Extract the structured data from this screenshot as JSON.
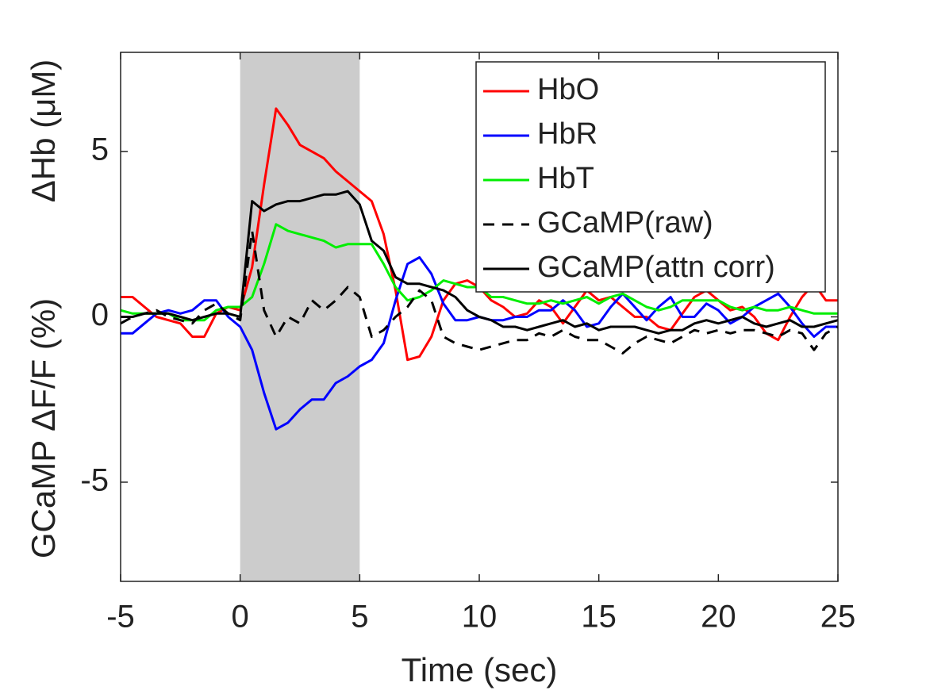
{
  "chart_data": {
    "type": "line",
    "xlabel": "Time (sec)",
    "ylabel": [
      "GCaMP ΔF/F (%)",
      "ΔHb (μM)"
    ],
    "x": [
      -5,
      -4.5,
      -4,
      -3.5,
      -3,
      -2.5,
      -2,
      -1.5,
      -1,
      -0.5,
      0,
      0.5,
      1,
      1.5,
      2,
      2.5,
      3,
      3.5,
      4,
      4.5,
      5,
      5.5,
      6,
      6.5,
      7,
      7.5,
      8,
      8.5,
      9,
      9.5,
      10,
      10.5,
      11,
      11.5,
      12,
      12.5,
      13,
      13.5,
      14,
      14.5,
      15,
      15.5,
      16,
      16.5,
      17,
      17.5,
      18,
      18.5,
      19,
      19.5,
      20,
      20.5,
      21,
      21.5,
      22,
      22.5,
      23,
      23.5,
      24,
      24.5,
      25
    ],
    "series": [
      {
        "name": "HbO",
        "color": "#ff0000",
        "dashed": false,
        "values": [
          0.6,
          0.6,
          0.3,
          0.0,
          -0.1,
          -0.2,
          -0.6,
          -0.6,
          0.1,
          0.3,
          0.2,
          1.5,
          4.0,
          6.3,
          5.8,
          5.2,
          5.0,
          4.8,
          4.4,
          4.1,
          3.8,
          3.5,
          2.5,
          0.8,
          -1.3,
          -1.2,
          -0.6,
          0.5,
          1.0,
          1.1,
          0.9,
          0.5,
          0.3,
          0.0,
          0.1,
          0.5,
          0.3,
          -0.2,
          0.3,
          0.8,
          0.5,
          0.6,
          0.3,
          0.0,
          0.0,
          -0.3,
          -0.4,
          0.1,
          0.6,
          0.8,
          0.5,
          0.2,
          0.3,
          0.0,
          -0.5,
          -0.7,
          0.0,
          0.6,
          1.0,
          0.5,
          0.5
        ]
      },
      {
        "name": "HbR",
        "color": "#0000ff",
        "dashed": false,
        "values": [
          -0.5,
          -0.5,
          -0.2,
          0.1,
          0.2,
          0.1,
          0.2,
          0.5,
          0.5,
          0.0,
          -0.3,
          -1.0,
          -2.3,
          -3.4,
          -3.2,
          -2.8,
          -2.5,
          -2.5,
          -2.0,
          -1.8,
          -1.5,
          -1.3,
          -0.8,
          0.5,
          1.6,
          1.8,
          1.3,
          0.4,
          -0.1,
          -0.1,
          0.0,
          -0.1,
          -0.1,
          0.0,
          0.0,
          0.2,
          0.2,
          0.5,
          0.2,
          -0.3,
          -0.2,
          0.3,
          0.7,
          0.3,
          -0.1,
          0.3,
          0.6,
          0.0,
          0.0,
          0.4,
          0.2,
          -0.2,
          0.0,
          0.3,
          0.5,
          0.7,
          0.3,
          -0.2,
          -0.6,
          -0.3,
          -0.3
        ]
      },
      {
        "name": "HbT",
        "color": "#00ee00",
        "dashed": false,
        "values": [
          0.2,
          0.1,
          0.1,
          0.1,
          0.1,
          -0.1,
          -0.1,
          -0.1,
          0.2,
          0.3,
          0.3,
          0.6,
          1.6,
          2.8,
          2.6,
          2.5,
          2.4,
          2.3,
          2.1,
          2.2,
          2.2,
          2.2,
          1.6,
          0.9,
          0.5,
          0.6,
          0.8,
          1.1,
          1.0,
          0.9,
          0.9,
          0.6,
          0.6,
          0.5,
          0.4,
          0.4,
          0.5,
          0.4,
          0.5,
          0.6,
          0.4,
          0.6,
          0.7,
          0.5,
          0.3,
          0.2,
          0.3,
          0.5,
          0.5,
          0.5,
          0.5,
          0.3,
          0.2,
          0.3,
          0.2,
          0.2,
          0.3,
          0.2,
          0.1,
          0.1,
          0.1
        ]
      },
      {
        "name": "GCaMP(raw)",
        "color": "#000000",
        "dashed": true,
        "values": [
          -0.2,
          0.0,
          0.1,
          0.2,
          0.0,
          -0.1,
          -0.2,
          0.2,
          0.4,
          0.1,
          -0.1,
          2.6,
          0.2,
          -0.6,
          0.0,
          -0.2,
          0.5,
          0.2,
          0.5,
          0.9,
          0.6,
          -0.6,
          -0.4,
          0.0,
          0.3,
          0.8,
          0.5,
          -0.6,
          -0.8,
          -0.9,
          -1.0,
          -0.9,
          -0.8,
          -0.7,
          -0.7,
          -0.5,
          -0.6,
          -0.4,
          -0.6,
          -0.7,
          -0.7,
          -0.9,
          -1.1,
          -0.8,
          -0.6,
          -0.7,
          -0.8,
          -0.6,
          -0.4,
          -0.5,
          -0.4,
          -0.5,
          -0.4,
          -0.4,
          -0.5,
          -0.6,
          -0.4,
          -0.5,
          -1.0,
          -0.5,
          -0.3
        ]
      },
      {
        "name": "GCaMP(attn corr)",
        "color": "#000000",
        "dashed": false,
        "values": [
          0.0,
          0.0,
          0.1,
          0.1,
          0.1,
          0.0,
          -0.1,
          0.0,
          0.1,
          0.1,
          0.0,
          3.5,
          3.2,
          3.4,
          3.5,
          3.5,
          3.6,
          3.7,
          3.7,
          3.8,
          3.4,
          2.3,
          2.0,
          1.2,
          1.0,
          1.0,
          0.9,
          0.8,
          0.6,
          0.2,
          0.0,
          -0.1,
          -0.3,
          -0.3,
          -0.4,
          -0.3,
          -0.2,
          -0.1,
          -0.3,
          -0.2,
          -0.4,
          -0.3,
          -0.3,
          -0.3,
          -0.4,
          -0.5,
          -0.4,
          -0.4,
          -0.2,
          -0.1,
          -0.2,
          -0.1,
          0.0,
          -0.2,
          -0.3,
          -0.2,
          -0.1,
          -0.3,
          -0.3,
          -0.2,
          -0.1
        ]
      }
    ],
    "shade": {
      "xmin": 0,
      "xmax": 5,
      "color": "#cccccc"
    },
    "xlim": [
      -5,
      25
    ],
    "xticks": [
      -5,
      0,
      5,
      10,
      15,
      20,
      25
    ],
    "ylim": [
      -8,
      8
    ],
    "yticks": [
      -5,
      0,
      5
    ],
    "grid": false,
    "legend": "upper right"
  }
}
